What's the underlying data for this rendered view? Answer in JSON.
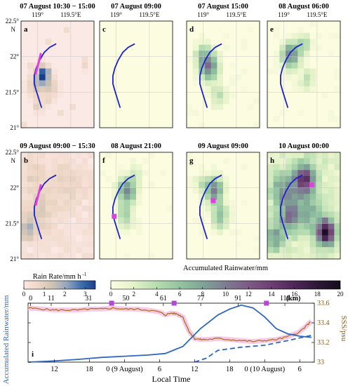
{
  "figure": {
    "colors": {
      "track": "#1a22c8",
      "sensor": "#e040e0",
      "rain_line": "#2f66c0",
      "sss_line": "#a8741c",
      "sss_highlight": "#f6c2e4",
      "marker": "#b348d6",
      "grid": "#c8c8c8"
    }
  },
  "map_axes": {
    "lon_ticks": [
      {
        "value": 119,
        "label": "119°"
      },
      {
        "value": 119.5,
        "label": "119.5°E"
      }
    ],
    "lat_ticks": [
      {
        "value": 22.5,
        "label": "22.5°"
      },
      {
        "value": 22,
        "label": "22°"
      },
      {
        "value": 21.5,
        "label": "21.5°"
      },
      {
        "value": 21,
        "label": "21°"
      }
    ],
    "lat_hemisphere": "N",
    "lon_range": [
      118.75,
      119.85
    ],
    "lat_range": [
      21.0,
      22.5
    ]
  },
  "panels": [
    {
      "letter": "a",
      "title": "07 August 10:30 − 15:00",
      "kind": "rain_rate",
      "marker": null
    },
    {
      "letter": "c",
      "title": "07 August 09:00",
      "kind": "accum",
      "marker": null
    },
    {
      "letter": "d",
      "title": "07 August 15:00",
      "kind": "accum",
      "marker": null
    },
    {
      "letter": "e",
      "title": "08 August 06:00",
      "kind": "accum",
      "marker": null
    },
    {
      "letter": "b",
      "title": "09 August 09:00 − 15:30",
      "kind": "rain_rate",
      "marker": null
    },
    {
      "letter": "f",
      "title": "08 August 21:00",
      "kind": "accum",
      "marker": {
        "lon": 118.97,
        "lat": 21.6
      }
    },
    {
      "letter": "g",
      "title": "09 August 09:00",
      "kind": "accum",
      "marker": {
        "lon": 119.15,
        "lat": 21.82
      }
    },
    {
      "letter": "h",
      "title": "10 August 00:00",
      "kind": "accum",
      "marker": {
        "lon": 119.42,
        "lat": 22.04
      }
    }
  ],
  "colorbars": {
    "rain_rate": {
      "label": "Rain Rate/mm h",
      "label_sup": "-1",
      "ticks": [
        "0",
        "1",
        "2",
        "3"
      ],
      "range": [
        0,
        3.5
      ],
      "colors": [
        "#fbe7e3",
        "#eed7c6",
        "#cfc3b4",
        "#93a6be",
        "#3f6fae",
        "#1a3f8a"
      ]
    },
    "accum": {
      "label": "Accumulated Rainwater/mm",
      "ticks": [
        "0",
        "2",
        "4",
        "6",
        "8",
        "10",
        "12",
        "14",
        "16",
        "18",
        "20"
      ],
      "range": [
        0,
        20
      ],
      "colors": [
        "#fcfce1",
        "#e4f2c8",
        "#b7dcb1",
        "#93c49f",
        "#7fa596",
        "#7d7c92",
        "#7d5a85",
        "#6d3e72",
        "#4e2658",
        "#2c1838",
        "#140c1a"
      ]
    }
  },
  "chart_data": {
    "type": "line",
    "panel_letter": "i",
    "ylabel_left": "Accumulated Rainwater/mm",
    "ylabel_right": "SSS/psu",
    "xlabel": "Local Time",
    "top_axis_label": "(km)",
    "x_unit": "hours since 07 August 00:00",
    "xlim": [
      7.5,
      87
    ],
    "ylim_left": [
      0,
      15
    ],
    "yticks_left": [
      "0",
      "5",
      "10",
      "15"
    ],
    "ylim_right": [
      33.0,
      33.6
    ],
    "yticks_right": [
      "33",
      "33.2",
      "33.4",
      "33.6"
    ],
    "x_ticks": [
      {
        "x": 12,
        "label": "12"
      },
      {
        "x": 18,
        "label": "18"
      },
      {
        "x": 24,
        "label": "0 (9 August)"
      },
      {
        "x": 30,
        "label": "6"
      },
      {
        "x": 36,
        "label": "12"
      },
      {
        "x": 42,
        "label": "18"
      },
      {
        "x": 48,
        "label": "0 (10 August)"
      },
      {
        "x": 54,
        "label": "6"
      }
    ],
    "top_ticks": [
      {
        "x": 8.4,
        "label": "0"
      },
      {
        "x": 10.6,
        "label": "11"
      },
      {
        "x": 14.6,
        "label": "31"
      },
      {
        "x": 18.6,
        "label": "50"
      },
      {
        "x": 22.6,
        "label": "61"
      },
      {
        "x": 26.6,
        "label": "77"
      },
      {
        "x": 30.6,
        "label": "91"
      },
      {
        "x": 35.6,
        "label": "111"
      }
    ],
    "markers_x": [
      21.8,
      32.5,
      48.3
    ],
    "series": [
      {
        "key": "rain_solid",
        "axis": "left",
        "style": "solid",
        "x": [
          7.5,
          12,
          16,
          20,
          24,
          28,
          31,
          34,
          37,
          40,
          42,
          44,
          46,
          48,
          50,
          52,
          54,
          56
        ],
        "y": [
          0,
          0.3,
          0.7,
          1.2,
          1.5,
          1.8,
          2.2,
          4,
          8.5,
          12,
          13.5,
          14.5,
          13.8,
          11.5,
          8.5,
          7.2,
          6.6,
          6.3
        ]
      },
      {
        "key": "rain_dashed",
        "axis": "left",
        "style": "dashed",
        "x": [
          36,
          38,
          40,
          44,
          48,
          52,
          56
        ],
        "y": [
          0,
          1.0,
          3.0,
          3.8,
          4.3,
          5.5,
          6.8
        ]
      },
      {
        "key": "sss",
        "axis": "right",
        "style": "solid",
        "x": [
          7.5,
          10,
          12,
          14,
          16,
          18,
          20,
          22,
          24,
          26,
          28,
          30,
          31,
          32,
          33,
          34,
          35,
          36,
          37,
          38,
          40,
          42,
          44,
          46,
          48,
          50,
          52,
          54,
          55,
          56
        ],
        "y": [
          33.55,
          33.54,
          33.53,
          33.53,
          33.53,
          33.54,
          33.54,
          33.55,
          33.54,
          33.54,
          33.53,
          33.51,
          33.48,
          33.5,
          33.49,
          33.46,
          33.32,
          33.24,
          33.23,
          33.23,
          33.24,
          33.23,
          33.22,
          33.21,
          33.22,
          33.23,
          33.26,
          33.31,
          33.36,
          33.42
        ]
      }
    ]
  }
}
